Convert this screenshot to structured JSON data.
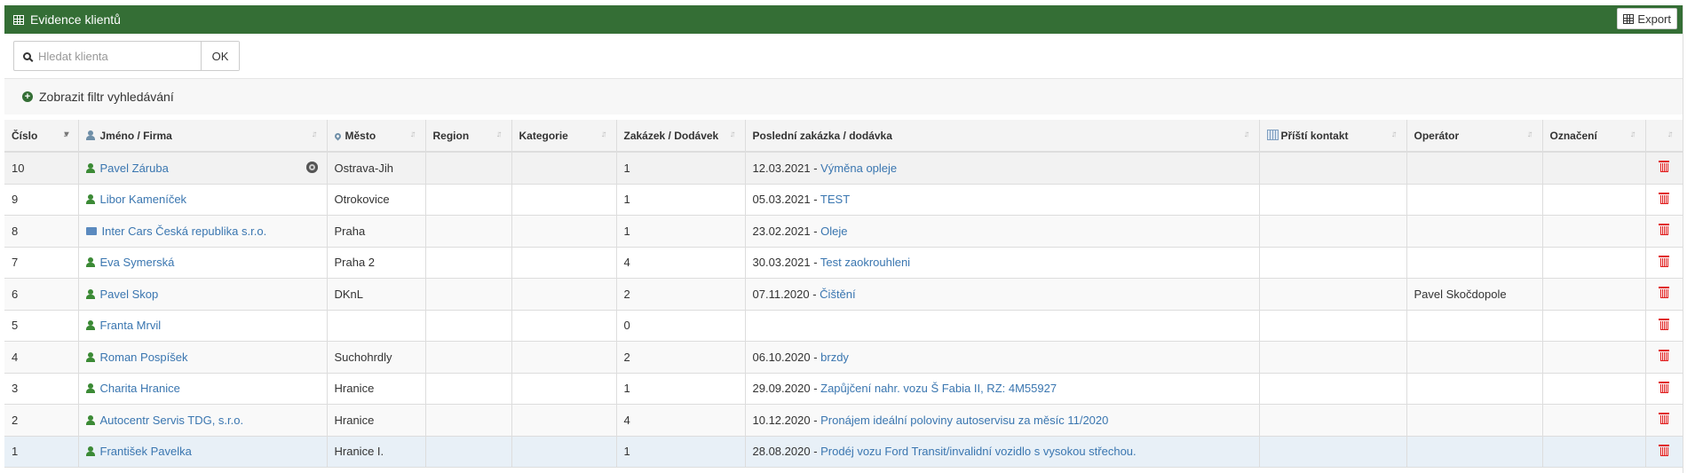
{
  "header": {
    "title": "Evidence klientů",
    "export_label": "Export",
    "accent": "#346e35"
  },
  "search": {
    "placeholder": "Hledat klienta",
    "value": "",
    "ok_label": "OK"
  },
  "filter": {
    "label": "Zobrazit filtr vyhledávání"
  },
  "table": {
    "columns": [
      "Číslo",
      "Jméno / Firma",
      "Město",
      "Region",
      "Kategorie",
      "Zakázek / Dodávek",
      "Poslední zakázka / dodávka",
      "Příští kontakt",
      "Operátor",
      "Označení",
      ""
    ],
    "sorted_column": "Číslo",
    "sort_direction": "descending",
    "rows": [
      {
        "id": "10",
        "name": "Pavel Záruba",
        "type": "person",
        "badge": "wheel-icon",
        "city": "Ostrava-Jih",
        "region": "",
        "category": "",
        "orders": "1",
        "last_date": "12.03.2021",
        "last_title": "Výměna opleje",
        "next_contact": "",
        "operator": "",
        "label": ""
      },
      {
        "id": "9",
        "name": "Libor Kameníček",
        "type": "person",
        "city": "Otrokovice",
        "region": "",
        "category": "",
        "orders": "1",
        "last_date": "05.03.2021",
        "last_title": "TEST",
        "next_contact": "",
        "operator": "",
        "label": ""
      },
      {
        "id": "8",
        "name": "Inter Cars Česká republika s.r.o.",
        "type": "company",
        "city": "Praha",
        "region": "",
        "category": "",
        "orders": "1",
        "last_date": "23.02.2021",
        "last_title": "Oleje",
        "next_contact": "",
        "operator": "",
        "label": ""
      },
      {
        "id": "7",
        "name": "Eva Symerská",
        "type": "person",
        "city": "Praha 2",
        "region": "",
        "category": "",
        "orders": "4",
        "last_date": "30.03.2021",
        "last_title": "Test zaokrouhleni",
        "next_contact": "",
        "operator": "",
        "label": ""
      },
      {
        "id": "6",
        "name": "Pavel Skop",
        "type": "person",
        "city": "DKnL",
        "region": "",
        "category": "",
        "orders": "2",
        "last_date": "07.11.2020",
        "last_title": "Čištění",
        "next_contact": "",
        "operator": "Pavel Skočdopole",
        "label": ""
      },
      {
        "id": "5",
        "name": "Franta Mrvil",
        "type": "person",
        "city": "",
        "region": "",
        "category": "",
        "orders": "0",
        "last_date": "",
        "last_title": "",
        "next_contact": "",
        "operator": "",
        "label": ""
      },
      {
        "id": "4",
        "name": "Roman Pospíšek",
        "type": "person",
        "city": "Suchohrdly",
        "region": "",
        "category": "",
        "orders": "2",
        "last_date": "06.10.2020",
        "last_title": "brzdy",
        "next_contact": "",
        "operator": "",
        "label": ""
      },
      {
        "id": "3",
        "name": "Charita Hranice",
        "type": "person",
        "city": "Hranice",
        "region": "",
        "category": "",
        "orders": "1",
        "last_date": "29.09.2020",
        "last_title": "Zapůjčení nahr. vozu Š Fabia II, RZ: 4M55927",
        "next_contact": "",
        "operator": "",
        "label": ""
      },
      {
        "id": "2",
        "name": "Autocentr Servis TDG, s.r.o.",
        "type": "person",
        "city": "Hranice",
        "region": "",
        "category": "",
        "orders": "4",
        "last_date": "10.12.2020",
        "last_title": "Pronájem ideální poloviny autoservisu za měsíc 11/2020",
        "next_contact": "",
        "operator": "",
        "label": ""
      },
      {
        "id": "1",
        "name": "František Pavelka",
        "type": "person",
        "city": "Hranice I.",
        "region": "",
        "category": "",
        "orders": "1",
        "last_date": "28.08.2020",
        "last_title": "Prodéj vozu Ford Transit/invalidní vozidlo s vysokou střechou.",
        "next_contact": "",
        "operator": "",
        "label": ""
      }
    ]
  }
}
